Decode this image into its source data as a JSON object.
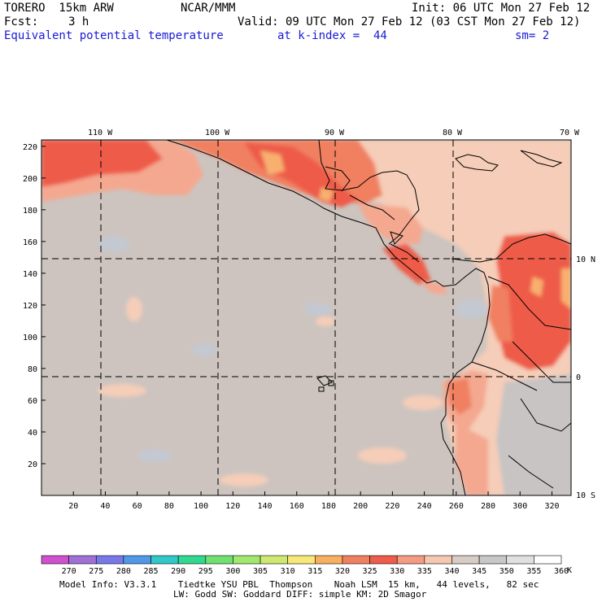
{
  "header": {
    "model": "TORERO  15km ARW",
    "center": "NCAR/MMM",
    "init": "Init: 06 UTC Mon 27 Feb 12",
    "fcst_label": "Fcst:",
    "fcst_value": "3 h",
    "valid": "Valid: 09 UTC Mon 27 Feb 12 (03 CST Mon 27 Feb 12)",
    "field": "Equivalent potential temperature",
    "level": "at k-index =  44",
    "smoothing": "sm= 2"
  },
  "map": {
    "x_ticks": [
      "20",
      "40",
      "60",
      "80",
      "100",
      "120",
      "140",
      "160",
      "180",
      "200",
      "220",
      "240",
      "260",
      "280",
      "300",
      "320"
    ],
    "y_ticks": [
      "20",
      "40",
      "60",
      "80",
      "100",
      "120",
      "140",
      "160",
      "180",
      "200",
      "220"
    ],
    "lon_labels": [
      "110 W",
      "100 W",
      "90 W",
      "80 W",
      "70 W"
    ],
    "lat_labels": [
      "10 N",
      "0",
      "10 S"
    ],
    "colors": {
      "background_field": "#cdc4bf",
      "warm_335": "#f4a890",
      "warm_340": "#f5cdb8",
      "warm_325": "#f08060",
      "warm_330": "#ee5c4a",
      "cool_350": "#c8c8cc",
      "hot_320": "#f8b070"
    }
  },
  "colorbar": {
    "levels": [
      "270",
      "275",
      "280",
      "285",
      "290",
      "295",
      "300",
      "305",
      "310",
      "315",
      "320",
      "325",
      "330",
      "335",
      "340",
      "345",
      "350",
      "355",
      "360"
    ],
    "unit": "K",
    "colors": [
      "#d050d0",
      "#a070d8",
      "#7878e8",
      "#5098e8",
      "#30c8c8",
      "#30d890",
      "#70e070",
      "#a0e870",
      "#d0e870",
      "#f8e878",
      "#f8b060",
      "#f08060",
      "#ee5c4a",
      "#f49c82",
      "#f5c8b0",
      "#d8ccc4",
      "#c8c8c8",
      "#e0e0e0",
      "#ffffff"
    ]
  },
  "footer": {
    "line1": "Model Info: V3.3.1    Tiedtke YSU PBL  Thompson    Noah LSM  15 km,   44 levels,   82 sec",
    "line2": "LW: Godd SW: Goddard DIFF: simple KM: 2D Smagor"
  }
}
